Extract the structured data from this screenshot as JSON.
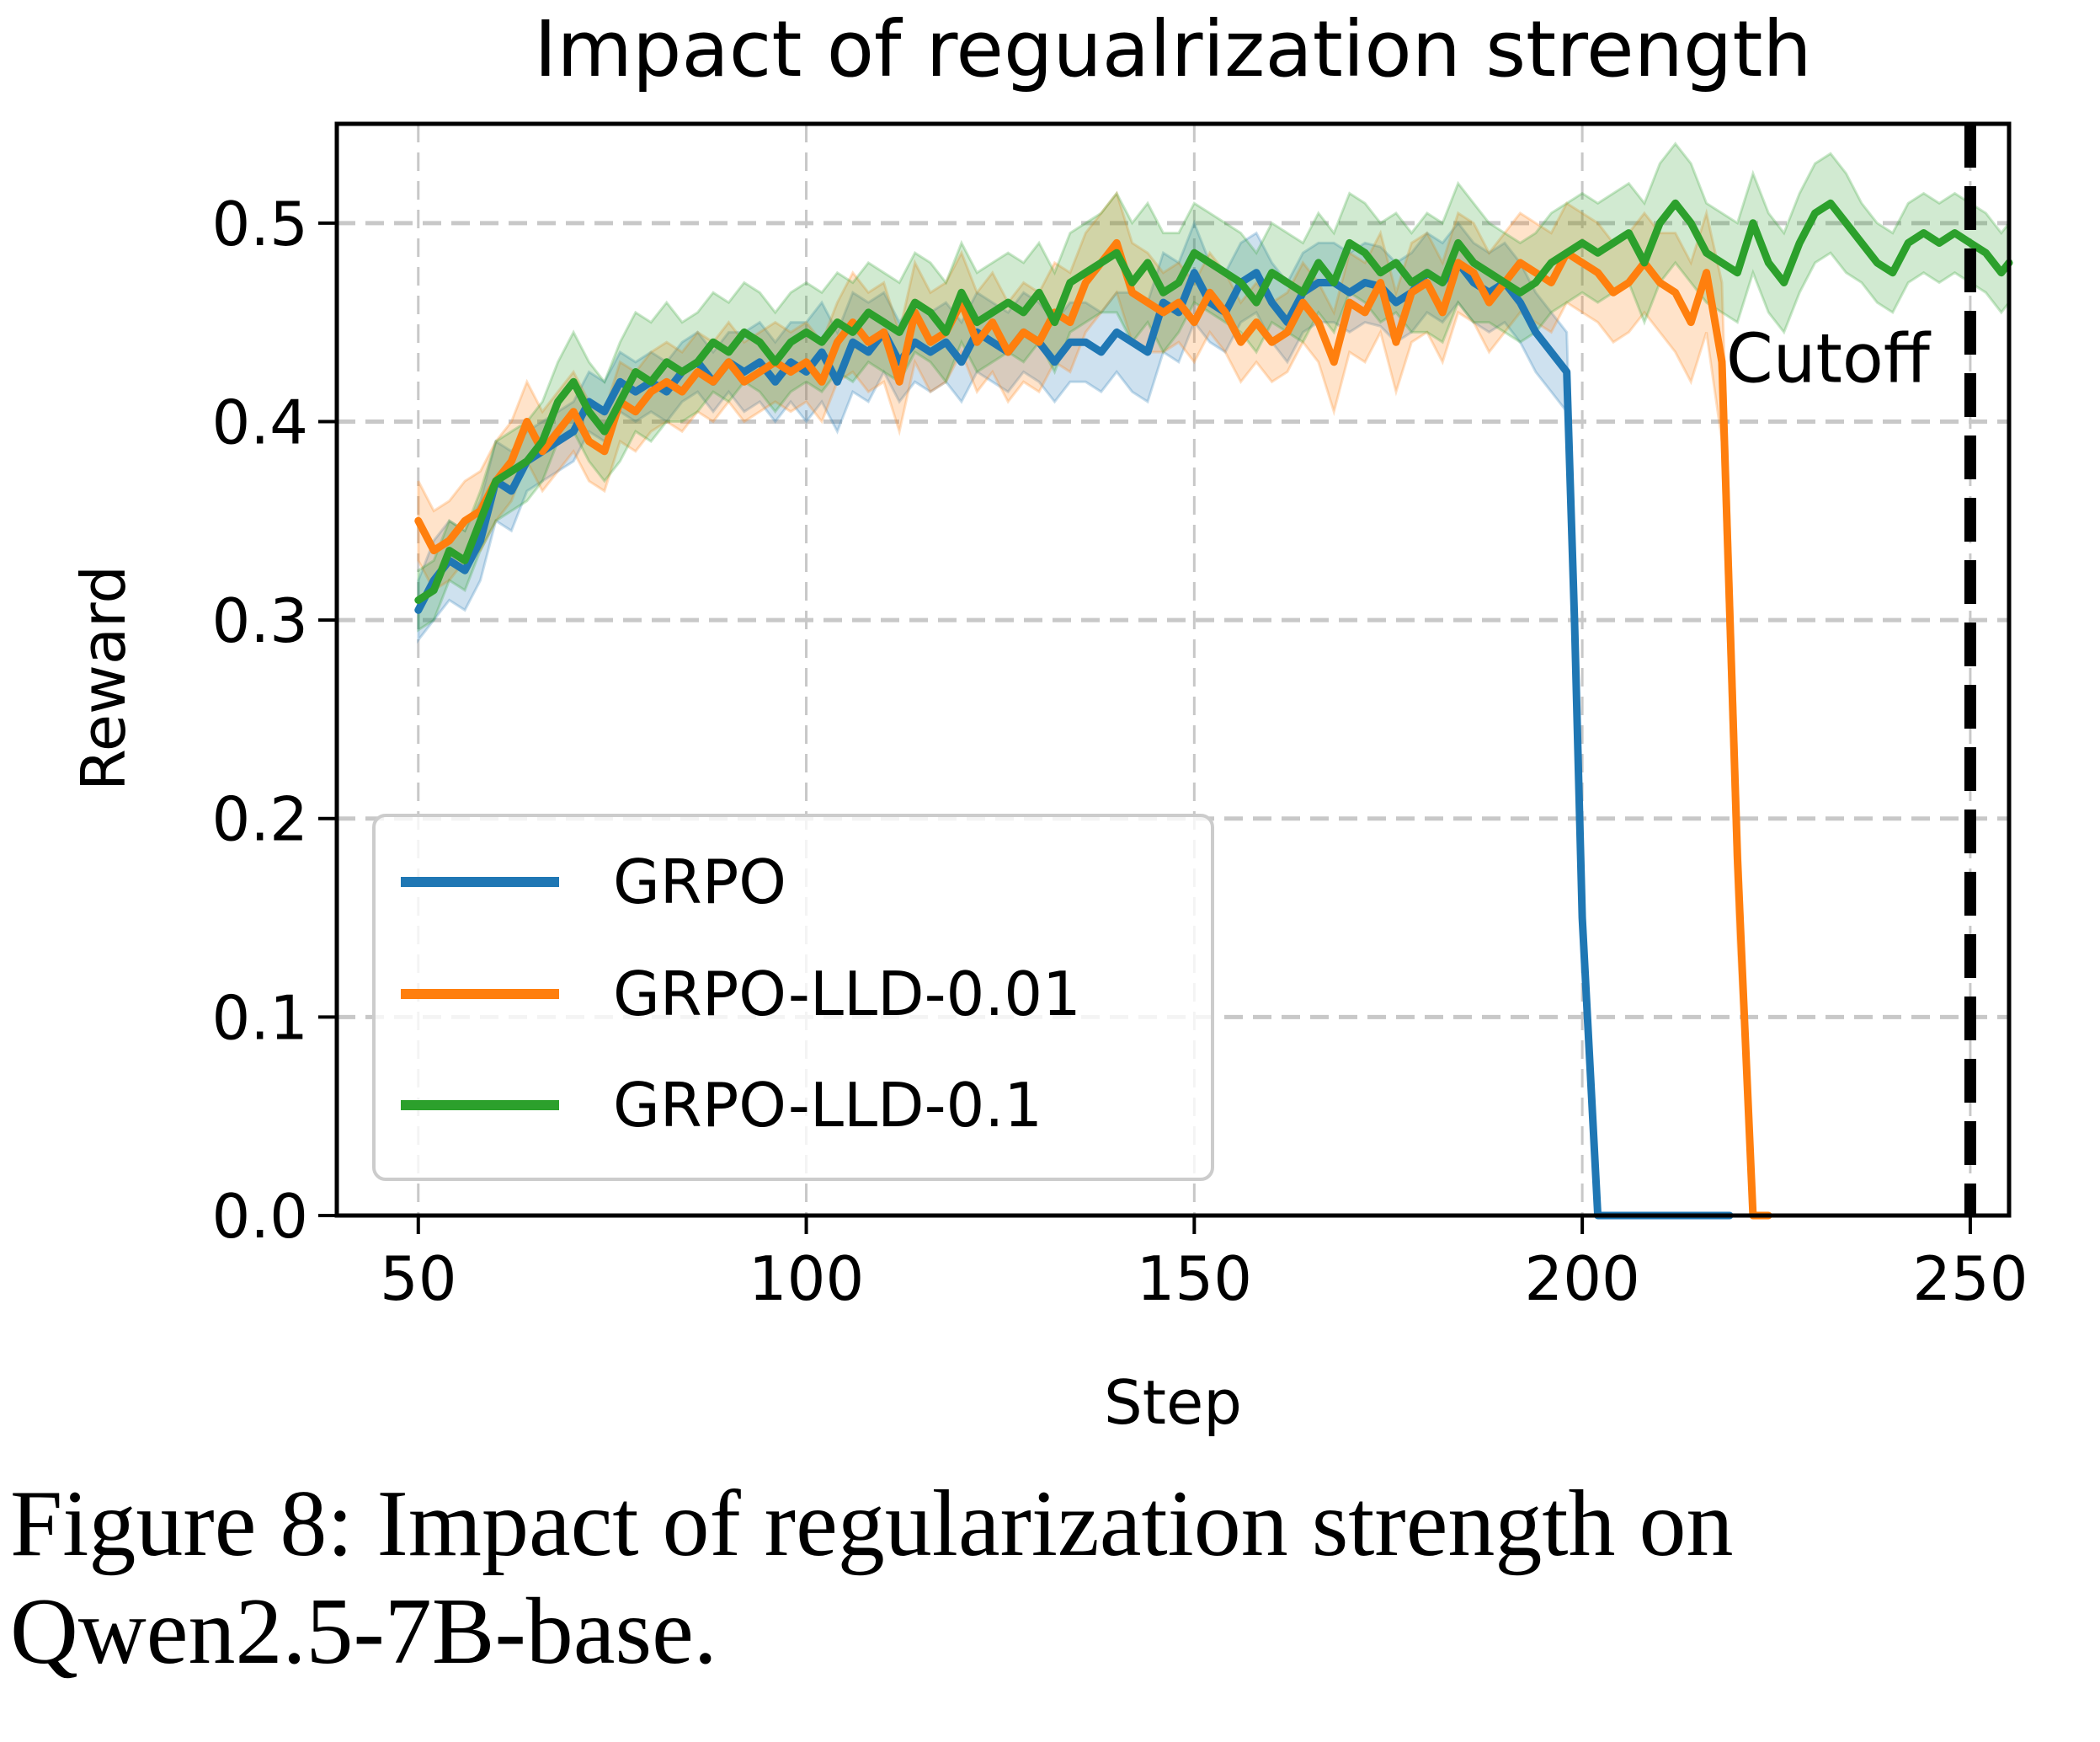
{
  "caption": {
    "line1": "Figure 8: Impact of regularization strength on",
    "line2": "Qwen2.5-7B-base."
  },
  "chart_data": {
    "type": "line",
    "title": "Impact of regualrization strength",
    "xlabel": "Step",
    "ylabel": "Reward",
    "xlim": [
      39.5,
      255
    ],
    "ylim": [
      0,
      0.55
    ],
    "xticks": [
      50,
      100,
      150,
      200,
      250
    ],
    "xtick_labels": [
      "50",
      "100",
      "150",
      "200",
      "250"
    ],
    "yticks": [
      0.0,
      0.1,
      0.2,
      0.3,
      0.4,
      0.5
    ],
    "ytick_labels": [
      "0.0",
      "0.1",
      "0.2",
      "0.3",
      "0.4",
      "0.5"
    ],
    "grid": true,
    "legend_position": "lower-left",
    "cutoff": {
      "x": 250,
      "label": "Cutoff",
      "color": "#000000"
    },
    "series": [
      {
        "name": "GRPO",
        "color": "#1f77b4",
        "x": [
          50,
          52,
          54,
          56,
          58,
          60,
          62,
          64,
          66,
          68,
          70,
          72,
          74,
          76,
          78,
          80,
          82,
          84,
          86,
          88,
          90,
          92,
          94,
          96,
          98,
          100,
          102,
          104,
          106,
          108,
          110,
          112,
          114,
          116,
          118,
          120,
          122,
          124,
          126,
          128,
          130,
          132,
          134,
          136,
          138,
          140,
          142,
          144,
          146,
          148,
          150,
          152,
          154,
          156,
          158,
          160,
          162,
          164,
          166,
          168,
          170,
          172,
          174,
          176,
          178,
          180,
          182,
          184,
          186,
          188,
          190,
          192,
          194,
          196,
          198,
          199,
          200,
          202,
          205,
          210,
          215,
          219
        ],
        "values": [
          0.305,
          0.32,
          0.33,
          0.325,
          0.34,
          0.37,
          0.365,
          0.38,
          0.385,
          0.39,
          0.395,
          0.41,
          0.405,
          0.42,
          0.415,
          0.42,
          0.415,
          0.425,
          0.43,
          0.42,
          0.43,
          0.425,
          0.43,
          0.42,
          0.43,
          0.425,
          0.435,
          0.42,
          0.44,
          0.435,
          0.445,
          0.43,
          0.44,
          0.435,
          0.44,
          0.43,
          0.445,
          0.44,
          0.435,
          0.445,
          0.44,
          0.43,
          0.44,
          0.44,
          0.435,
          0.445,
          0.44,
          0.435,
          0.46,
          0.455,
          0.475,
          0.46,
          0.455,
          0.47,
          0.475,
          0.46,
          0.45,
          0.465,
          0.47,
          0.47,
          0.465,
          0.47,
          0.468,
          0.46,
          0.465,
          0.475,
          0.47,
          0.48,
          0.47,
          0.465,
          0.47,
          0.46,
          0.445,
          0.435,
          0.425,
          0.3,
          0.15,
          0.0,
          0.0,
          0.0,
          0.0,
          0.0
        ],
        "band": [
          0.015,
          0.02,
          0.02,
          0.02,
          0.02,
          0.02,
          0.02,
          0.015,
          0.015,
          0.015,
          0.015,
          0.015,
          0.015,
          0.015,
          0.015,
          0.015,
          0.015,
          0.015,
          0.015,
          0.015,
          0.015,
          0.02,
          0.02,
          0.02,
          0.02,
          0.025,
          0.025,
          0.025,
          0.025,
          0.025,
          0.02,
          0.02,
          0.02,
          0.02,
          0.02,
          0.02,
          0.02,
          0.02,
          0.02,
          0.02,
          0.02,
          0.02,
          0.02,
          0.02,
          0.02,
          0.02,
          0.025,
          0.025,
          0.025,
          0.025,
          0.025,
          0.02,
          0.02,
          0.02,
          0.02,
          0.02,
          0.02,
          0.02,
          0.02,
          0.02,
          0.02,
          0.02,
          0.02,
          0.02,
          0.02,
          0.02,
          0.02,
          0.02,
          0.02,
          0.02,
          0.02,
          0.02,
          0.02,
          0.02,
          0.02,
          0.02,
          0.02,
          0.0,
          0.0,
          0.0,
          0.0,
          0.0
        ]
      },
      {
        "name": "GRPO-LLD-0.01",
        "color": "#ff7f0e",
        "x": [
          50,
          52,
          54,
          56,
          58,
          60,
          62,
          64,
          66,
          68,
          70,
          72,
          74,
          76,
          78,
          80,
          82,
          84,
          86,
          88,
          90,
          92,
          94,
          96,
          98,
          100,
          102,
          104,
          106,
          108,
          110,
          112,
          114,
          116,
          118,
          120,
          122,
          124,
          126,
          128,
          130,
          132,
          134,
          136,
          138,
          140,
          142,
          144,
          146,
          148,
          150,
          152,
          154,
          156,
          158,
          160,
          162,
          164,
          166,
          168,
          170,
          172,
          174,
          176,
          178,
          180,
          182,
          184,
          186,
          188,
          190,
          192,
          194,
          196,
          198,
          200,
          202,
          204,
          206,
          208,
          210,
          212,
          214,
          216,
          218,
          220,
          222,
          224
        ],
        "values": [
          0.35,
          0.335,
          0.34,
          0.35,
          0.355,
          0.37,
          0.38,
          0.4,
          0.385,
          0.395,
          0.405,
          0.39,
          0.385,
          0.41,
          0.405,
          0.415,
          0.42,
          0.415,
          0.425,
          0.42,
          0.43,
          0.42,
          0.425,
          0.43,
          0.425,
          0.43,
          0.42,
          0.44,
          0.45,
          0.44,
          0.445,
          0.42,
          0.455,
          0.44,
          0.445,
          0.46,
          0.44,
          0.45,
          0.435,
          0.445,
          0.44,
          0.455,
          0.45,
          0.47,
          0.48,
          0.49,
          0.465,
          0.46,
          0.455,
          0.46,
          0.45,
          0.465,
          0.455,
          0.44,
          0.45,
          0.44,
          0.445,
          0.46,
          0.45,
          0.43,
          0.46,
          0.455,
          0.47,
          0.44,
          0.465,
          0.47,
          0.455,
          0.48,
          0.475,
          0.46,
          0.47,
          0.48,
          0.475,
          0.47,
          0.485,
          0.48,
          0.475,
          0.465,
          0.47,
          0.48,
          0.47,
          0.465,
          0.45,
          0.475,
          0.43,
          0.18,
          0.0,
          0.0
        ],
        "band": [
          0.02,
          0.02,
          0.02,
          0.02,
          0.02,
          0.02,
          0.02,
          0.02,
          0.02,
          0.02,
          0.02,
          0.02,
          0.02,
          0.02,
          0.02,
          0.02,
          0.02,
          0.02,
          0.02,
          0.02,
          0.02,
          0.02,
          0.02,
          0.02,
          0.02,
          0.02,
          0.02,
          0.02,
          0.025,
          0.025,
          0.025,
          0.025,
          0.025,
          0.025,
          0.025,
          0.025,
          0.025,
          0.025,
          0.025,
          0.025,
          0.025,
          0.025,
          0.025,
          0.025,
          0.025,
          0.025,
          0.025,
          0.025,
          0.02,
          0.02,
          0.02,
          0.02,
          0.02,
          0.02,
          0.02,
          0.02,
          0.02,
          0.02,
          0.02,
          0.025,
          0.025,
          0.025,
          0.025,
          0.025,
          0.025,
          0.025,
          0.025,
          0.025,
          0.025,
          0.025,
          0.025,
          0.025,
          0.025,
          0.025,
          0.025,
          0.025,
          0.025,
          0.025,
          0.025,
          0.025,
          0.025,
          0.03,
          0.03,
          0.03,
          0.04,
          0.04,
          0.0,
          0.0
        ]
      },
      {
        "name": "GRPO-LLD-0.1",
        "color": "#2ca02c",
        "x": [
          50,
          52,
          54,
          56,
          58,
          60,
          62,
          64,
          66,
          68,
          70,
          72,
          74,
          76,
          78,
          80,
          82,
          84,
          86,
          88,
          90,
          92,
          94,
          96,
          98,
          100,
          102,
          104,
          106,
          108,
          110,
          112,
          114,
          116,
          118,
          120,
          122,
          124,
          126,
          128,
          130,
          132,
          134,
          136,
          138,
          140,
          142,
          144,
          146,
          148,
          150,
          152,
          154,
          156,
          158,
          160,
          162,
          164,
          166,
          168,
          170,
          172,
          174,
          176,
          178,
          180,
          182,
          184,
          186,
          188,
          190,
          192,
          194,
          196,
          198,
          200,
          202,
          204,
          206,
          208,
          210,
          212,
          214,
          216,
          218,
          220,
          222,
          224,
          226,
          228,
          230,
          232,
          234,
          236,
          238,
          240,
          242,
          244,
          246,
          248,
          250,
          252,
          254,
          255
        ],
        "values": [
          0.31,
          0.315,
          0.335,
          0.33,
          0.35,
          0.37,
          0.375,
          0.38,
          0.39,
          0.41,
          0.42,
          0.405,
          0.395,
          0.41,
          0.425,
          0.42,
          0.43,
          0.425,
          0.43,
          0.44,
          0.435,
          0.445,
          0.44,
          0.43,
          0.44,
          0.445,
          0.44,
          0.45,
          0.445,
          0.455,
          0.45,
          0.445,
          0.46,
          0.455,
          0.445,
          0.465,
          0.45,
          0.455,
          0.46,
          0.455,
          0.465,
          0.45,
          0.47,
          0.475,
          0.48,
          0.485,
          0.47,
          0.48,
          0.465,
          0.47,
          0.485,
          0.48,
          0.475,
          0.47,
          0.46,
          0.475,
          0.47,
          0.465,
          0.48,
          0.47,
          0.49,
          0.485,
          0.475,
          0.48,
          0.47,
          0.475,
          0.47,
          0.49,
          0.48,
          0.475,
          0.47,
          0.465,
          0.47,
          0.48,
          0.485,
          0.49,
          0.485,
          0.49,
          0.495,
          0.48,
          0.5,
          0.51,
          0.5,
          0.485,
          0.48,
          0.475,
          0.5,
          0.48,
          0.47,
          0.49,
          0.505,
          0.51,
          0.5,
          0.49,
          0.48,
          0.475,
          0.49,
          0.495,
          0.49,
          0.495,
          0.49,
          0.485,
          0.475,
          0.48
        ],
        "band": [
          0.015,
          0.015,
          0.015,
          0.015,
          0.015,
          0.02,
          0.02,
          0.02,
          0.02,
          0.02,
          0.025,
          0.025,
          0.025,
          0.03,
          0.03,
          0.03,
          0.03,
          0.025,
          0.025,
          0.025,
          0.025,
          0.025,
          0.025,
          0.025,
          0.025,
          0.025,
          0.025,
          0.025,
          0.025,
          0.025,
          0.025,
          0.025,
          0.025,
          0.025,
          0.025,
          0.025,
          0.025,
          0.025,
          0.025,
          0.025,
          0.025,
          0.025,
          0.025,
          0.025,
          0.025,
          0.03,
          0.03,
          0.03,
          0.03,
          0.025,
          0.025,
          0.025,
          0.025,
          0.025,
          0.025,
          0.025,
          0.025,
          0.025,
          0.025,
          0.025,
          0.025,
          0.025,
          0.025,
          0.025,
          0.025,
          0.03,
          0.03,
          0.03,
          0.03,
          0.025,
          0.025,
          0.025,
          0.025,
          0.025,
          0.025,
          0.025,
          0.025,
          0.025,
          0.025,
          0.03,
          0.03,
          0.03,
          0.03,
          0.025,
          0.025,
          0.025,
          0.025,
          0.025,
          0.025,
          0.025,
          0.025,
          0.025,
          0.025,
          0.02,
          0.02,
          0.02,
          0.02,
          0.02,
          0.02,
          0.02,
          0.02,
          0.02,
          0.02,
          0.02
        ]
      }
    ]
  }
}
